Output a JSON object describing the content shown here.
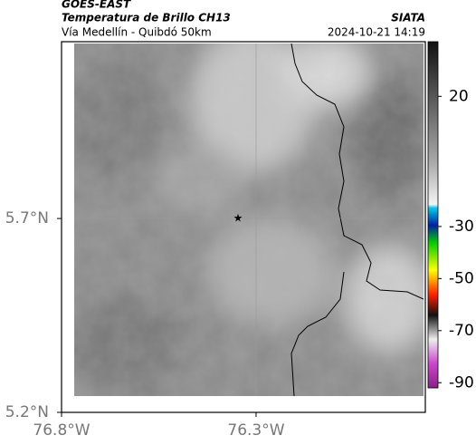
{
  "header": {
    "title": "GOES-EAST",
    "subtitle": "Temperatura de Brillo CH13",
    "location": "Vía Medellín - Quibdó 50km",
    "source": "SIATA",
    "datetime": "2024-10-21 14:19"
  },
  "map": {
    "xlim": [
      -76.8,
      -75.865
    ],
    "ylim": [
      5.2,
      6.156
    ],
    "xticks": [
      {
        "value": -76.8,
        "label": "76.8°W"
      },
      {
        "value": -76.3,
        "label": "76.3°W"
      }
    ],
    "yticks": [
      {
        "value": 5.7,
        "label": "5.7°N"
      },
      {
        "value": 5.2,
        "label": "5.2°N"
      }
    ]
  },
  "colorbar": {
    "lim": [
      -92,
      41
    ],
    "ticks": [
      20,
      -30,
      -50,
      -70,
      -90
    ]
  }
}
